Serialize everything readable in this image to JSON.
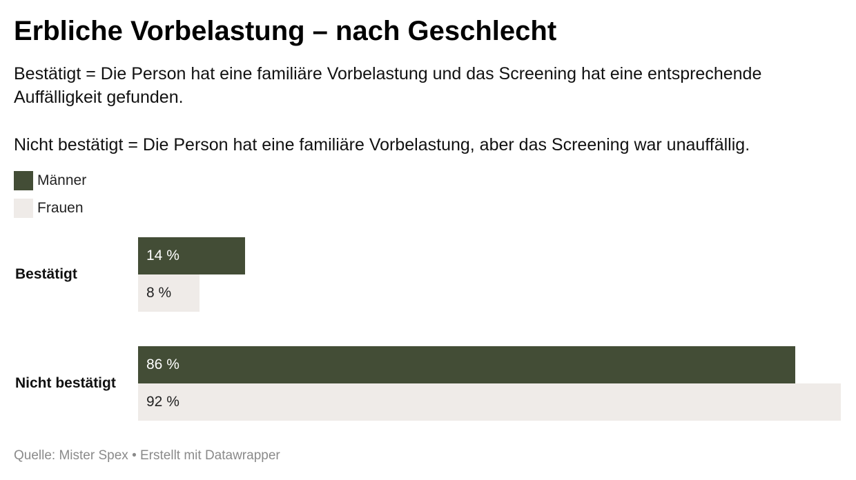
{
  "header": {
    "title": "Erbliche Vorbelastung – nach Geschlecht",
    "description_1": "Bestätigt = Die Person hat eine familiäre Vorbelastung und das Screening hat eine entsprechende Auffälligkeit gefunden.",
    "description_2": "Nicht bestätigt = Die Person hat eine familiäre Vorbelastung, aber das Screening war unauffällig."
  },
  "footer": {
    "source": "Quelle: Mister Spex • Erstellt mit Datawrapper"
  },
  "chart_data": {
    "type": "bar",
    "orientation": "horizontal",
    "title": "Erbliche Vorbelastung – nach Geschlecht",
    "categories": [
      "Bestätigt",
      "Nicht bestätigt"
    ],
    "series": [
      {
        "name": "Männer",
        "color": "#434d36",
        "text_color": "#ffffff",
        "values": [
          14,
          86
        ],
        "labels": [
          "14 %",
          "86 %"
        ]
      },
      {
        "name": "Frauen",
        "color": "#efebe8",
        "text_color": "#222222",
        "values": [
          8,
          92
        ],
        "labels": [
          "8 %",
          "92 %"
        ]
      }
    ],
    "value_unit": "%",
    "xlim": [
      0,
      92
    ],
    "legend_position": "top-left",
    "grid": false
  }
}
